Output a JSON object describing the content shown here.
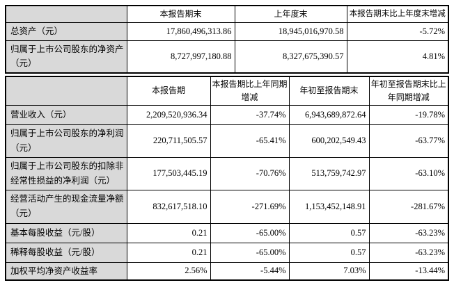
{
  "colors": {
    "table_shading": "#d9d9d9",
    "border": "#000000",
    "text": "#000000",
    "background": "#ffffff"
  },
  "balance_table": {
    "headers": [
      "",
      "本报告期末",
      "上年度末",
      "本报告期末比上年度末增减"
    ],
    "rows": [
      [
        "总资产（元）",
        "17,860,496,313.86",
        "18,945,016,970.58",
        "-5.72%"
      ],
      [
        "归属于上市公司股东的净资产（元）",
        "8,727,997,180.88",
        "8,327,675,390.57",
        "4.81%"
      ]
    ]
  },
  "performance_table": {
    "headers": [
      "",
      "本报告期",
      "本报告期比上年同期增减",
      "年初至报告期末",
      "年初至报告期末比上年同期增减"
    ],
    "rows": [
      [
        "营业收入（元）",
        "2,209,520,936.34",
        "-37.74%",
        "6,943,689,872.64",
        "-19.78%"
      ],
      [
        "归属于上市公司股东的净利润（元）",
        "220,711,505.57",
        "-65.41%",
        "600,202,549.43",
        "-63.77%"
      ],
      [
        "归属于上市公司股东的扣除非经常性损益的净利润（元）",
        "177,503,445.19",
        "-70.76%",
        "513,759,742.97",
        "-63.10%"
      ],
      [
        "经营活动产生的现金流量净额（元）",
        "832,617,518.10",
        "-271.69%",
        "1,153,452,148.91",
        "-281.67%"
      ],
      [
        "基本每股收益（元/股）",
        "0.21",
        "-65.00%",
        "0.57",
        "-63.23%"
      ],
      [
        "稀释每股收益（元/股）",
        "0.21",
        "-65.00%",
        "0.57",
        "-63.23%"
      ],
      [
        "加权平均净资产收益率",
        "2.56%",
        "-5.44%",
        "7.03%",
        "-13.44%"
      ]
    ]
  }
}
